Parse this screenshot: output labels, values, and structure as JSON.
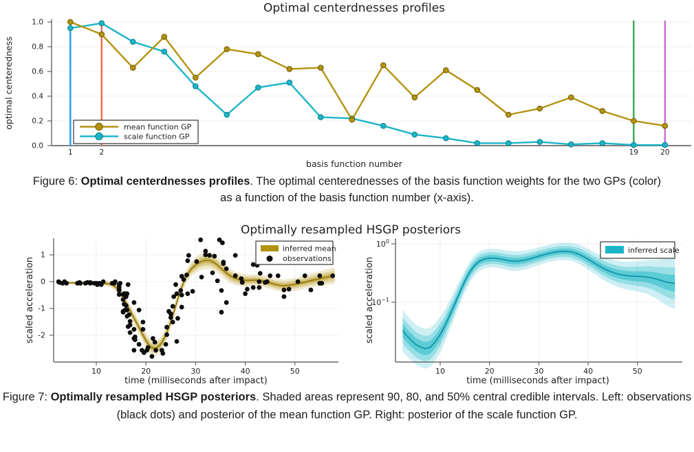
{
  "page": {
    "background": "#ffffff"
  },
  "colors": {
    "gold": "#B3920E",
    "gold_line": "#93760A",
    "teal": "#1BB5C7",
    "teal_line": "#0C93A5",
    "blue_vline": "#1E9DF2",
    "orange_vline": "#EE6A4C",
    "green_vline": "#3BA44F",
    "purple_vline": "#CB68D7",
    "observation_dot": "#0D0D0D",
    "spine": "#4a4a4a",
    "axis_bottom": "#7d7d7d",
    "grid": "#f0eeee",
    "legend_border": "#333333"
  },
  "figure6": {
    "caption": {
      "prefix": "Figure 6: ",
      "bold": "Optimal centerdnesses profiles",
      "rest": ". The optimal centerednesses of the basis function weights for the two GPs (color) as a function of the basis function number (x-axis)."
    }
  },
  "figure7": {
    "caption": {
      "prefix": "Figure 7: ",
      "bold": "Optimally resampled HSGP posteriors",
      "rest": ". Shaded areas represent 90, 80, and 50% central credible intervals. Left: observations (black dots) and posterior of the mean function GP. Right: posterior of the scale function GP."
    }
  },
  "chart_data": [
    {
      "id": "centeredness-profiles",
      "type": "line",
      "title": "Optimal centerdnesses profiles",
      "xlabel": "basis function number",
      "ylabel": "optimal centeredness",
      "x": [
        1,
        2,
        3,
        4,
        5,
        6,
        7,
        8,
        9,
        10,
        11,
        12,
        13,
        14,
        15,
        16,
        17,
        18,
        19,
        20
      ],
      "series": [
        {
          "name": "mean function GP",
          "color": "#B3920E",
          "marker_stroke": "#6F5A06",
          "values": [
            1.0,
            0.9,
            0.63,
            0.88,
            0.55,
            0.78,
            0.74,
            0.62,
            0.63,
            0.21,
            0.65,
            0.39,
            0.61,
            0.45,
            0.25,
            0.3,
            0.39,
            0.28,
            0.2,
            0.16
          ]
        },
        {
          "name": "scale function GP",
          "color": "#1BB5C7",
          "marker_stroke": "#0B7D8C",
          "values": [
            0.95,
            0.99,
            0.84,
            0.76,
            0.48,
            0.25,
            0.47,
            0.51,
            0.23,
            0.22,
            0.16,
            0.09,
            0.06,
            0.02,
            0.02,
            0.03,
            0.01,
            0.02,
            0.005,
            0.005
          ]
        }
      ],
      "vlines": [
        {
          "x": 1,
          "color": "#1E9DF2"
        },
        {
          "x": 2,
          "color": "#EE6A4C"
        },
        {
          "x": 19,
          "color": "#3BA44F"
        },
        {
          "x": 20,
          "color": "#CB68D7"
        }
      ],
      "xticks": [
        1,
        2,
        19,
        20
      ],
      "yticks": [
        0.0,
        0.2,
        0.4,
        0.6,
        0.8,
        1.0
      ],
      "ylim": [
        0.0,
        1.02
      ],
      "grid": true,
      "legend_position": "bottom-left"
    },
    {
      "id": "mean-function-posterior",
      "type": "scatter+band",
      "title": "Optimally resampled HSGP posteriors",
      "xlabel": "time (milliseconds after impact)",
      "ylabel": "scaled acceleration",
      "xticks": [
        10,
        20,
        30,
        40,
        50
      ],
      "yticks": [
        1,
        0,
        -1,
        -2
      ],
      "xlim": [
        1.4,
        58.8
      ],
      "ylim": [
        -3.0,
        1.62
      ],
      "band_levels": [
        90,
        80,
        50
      ],
      "band_fractions": [
        1,
        0.62,
        0.32
      ],
      "legend": [
        {
          "label": "inferred mean",
          "swatch": "band",
          "color": "#B3920E"
        },
        {
          "label": "observations",
          "swatch": "dot",
          "color": "#0D0D0D"
        }
      ],
      "mean_x": [
        2,
        4,
        6,
        8,
        10,
        12,
        13,
        14,
        15,
        16,
        17,
        18,
        19,
        20,
        21,
        22,
        23,
        24,
        25,
        26,
        27,
        28,
        29,
        30,
        31,
        32,
        33,
        34,
        35,
        36,
        37,
        38,
        39,
        40,
        41,
        42,
        43,
        44,
        45,
        46,
        47,
        48,
        49,
        50,
        51,
        52,
        53,
        54,
        55,
        56,
        57,
        58
      ],
      "mean_y": [
        -0.04,
        -0.04,
        -0.05,
        -0.05,
        -0.06,
        -0.07,
        -0.1,
        -0.22,
        -0.45,
        -0.8,
        -1.15,
        -1.5,
        -1.85,
        -2.2,
        -2.45,
        -2.5,
        -2.33,
        -2.0,
        -1.5,
        -0.9,
        -0.3,
        0.15,
        0.45,
        0.62,
        0.74,
        0.8,
        0.78,
        0.68,
        0.52,
        0.35,
        0.21,
        0.12,
        0.07,
        0.05,
        0.05,
        0.06,
        0.04,
        0.0,
        -0.05,
        -0.1,
        -0.14,
        -0.15,
        -0.13,
        -0.1,
        -0.06,
        -0.02,
        0.03,
        0.07,
        0.11,
        0.15,
        0.19,
        0.22
      ],
      "halfwidth90": [
        0.06,
        0.06,
        0.06,
        0.07,
        0.08,
        0.1,
        0.12,
        0.15,
        0.18,
        0.21,
        0.23,
        0.25,
        0.26,
        0.27,
        0.28,
        0.28,
        0.27,
        0.26,
        0.25,
        0.24,
        0.23,
        0.24,
        0.26,
        0.29,
        0.31,
        0.33,
        0.32,
        0.3,
        0.28,
        0.27,
        0.26,
        0.25,
        0.24,
        0.23,
        0.22,
        0.22,
        0.22,
        0.22,
        0.22,
        0.22,
        0.23,
        0.23,
        0.24,
        0.24,
        0.25,
        0.25,
        0.26,
        0.27,
        0.28,
        0.29,
        0.3,
        0.31
      ],
      "observations": [
        [
          2.4,
          0
        ],
        [
          2.6,
          -0.03
        ],
        [
          3.2,
          -0.06
        ],
        [
          3.6,
          0
        ],
        [
          4,
          -0.06
        ],
        [
          6.2,
          -0.06
        ],
        [
          6.6,
          -0.03
        ],
        [
          6.8,
          -0.06
        ],
        [
          7.8,
          -0.06
        ],
        [
          8.2,
          -0.03
        ],
        [
          8.8,
          -0.06
        ],
        [
          8.8,
          -0.03
        ],
        [
          9.6,
          -0.06
        ],
        [
          10,
          -0.06
        ],
        [
          10.2,
          -0.11
        ],
        [
          10.6,
          -0.06
        ],
        [
          11,
          -0.11
        ],
        [
          11.4,
          0
        ],
        [
          13.2,
          -0.06
        ],
        [
          13.6,
          -0.06
        ],
        [
          13.8,
          0
        ],
        [
          14.6,
          -0.28
        ],
        [
          14.6,
          -0.11
        ],
        [
          14.6,
          -0.11
        ],
        [
          14.6,
          -0.19
        ],
        [
          14.6,
          -0.33
        ],
        [
          14.6,
          -0.48
        ],
        [
          14.8,
          -0.06
        ],
        [
          15.4,
          -0.48
        ],
        [
          15.4,
          -0.67
        ],
        [
          15.4,
          -1.11
        ],
        [
          15.4,
          -1.14
        ],
        [
          15.6,
          -0.84
        ],
        [
          15.6,
          -0.45
        ],
        [
          15.8,
          -0.45
        ],
        [
          15.8,
          -1.06
        ],
        [
          16,
          -0.89
        ],
        [
          16,
          -0.56
        ],
        [
          16.2,
          -0.45
        ],
        [
          16.2,
          -1.06
        ],
        [
          16.2,
          -1.29
        ],
        [
          16.4,
          -0.11
        ],
        [
          16.4,
          -1.68
        ],
        [
          16.6,
          -1.23
        ],
        [
          16.8,
          -1.48
        ],
        [
          16.8,
          -1.9
        ],
        [
          16.8,
          -1.62
        ],
        [
          17.6,
          -0.78
        ],
        [
          17.6,
          -1.78
        ],
        [
          17.6,
          -2.56
        ],
        [
          17.6,
          -2.12
        ],
        [
          17.8,
          -2.06
        ],
        [
          17.8,
          -2.17
        ],
        [
          18.6,
          -2.34
        ],
        [
          18.6,
          -1.06
        ],
        [
          19.2,
          -2.56
        ],
        [
          19.4,
          -1.78
        ],
        [
          19.4,
          -1.51
        ],
        [
          19.6,
          -2.65
        ],
        [
          20.2,
          -2.56
        ],
        [
          20.4,
          -2.46
        ],
        [
          21.2,
          -2.79
        ],
        [
          21.4,
          -2.12
        ],
        [
          21.8,
          -2.26
        ],
        [
          22,
          -2.56
        ],
        [
          23.2,
          -2.56
        ],
        [
          23.4,
          -2.68
        ],
        [
          24,
          -2.34
        ],
        [
          24.2,
          -1.98
        ],
        [
          24.2,
          -1.7
        ],
        [
          24.6,
          -1.11
        ],
        [
          25,
          -1.34
        ],
        [
          25,
          -1.2
        ],
        [
          25.4,
          -1.51
        ],
        [
          25.4,
          -0.92
        ],
        [
          25.6,
          -0.56
        ],
        [
          26,
          -0.11
        ],
        [
          26.2,
          -2.23
        ],
        [
          26.2,
          -0.45
        ],
        [
          26.4,
          -1.37
        ],
        [
          27,
          -0.33
        ],
        [
          27.2,
          -0.95
        ],
        [
          27.2,
          -0.5
        ],
        [
          27.2,
          0.2
        ],
        [
          27.6,
          0.08
        ],
        [
          28.2,
          0.25
        ],
        [
          28.4,
          -0.45
        ],
        [
          28.4,
          0.78
        ],
        [
          28.6,
          0.98
        ],
        [
          29.4,
          -0.36
        ],
        [
          30.2,
          0.75
        ],
        [
          31,
          1.56
        ],
        [
          31.2,
          0.17
        ],
        [
          32,
          1.14
        ],
        [
          32,
          1
        ],
        [
          32.8,
          0.98
        ],
        [
          33.4,
          0.33
        ],
        [
          33.8,
          0.95
        ],
        [
          34.4,
          0.03
        ],
        [
          34.8,
          1.56
        ],
        [
          35.2,
          -0.33
        ],
        [
          35.2,
          -1.14
        ],
        [
          35.4,
          1.45
        ],
        [
          35.6,
          0.73
        ],
        [
          35.6,
          0.67
        ],
        [
          36.2,
          -0.78
        ],
        [
          36.2,
          0.48
        ],
        [
          38,
          0.98
        ],
        [
          38,
          0.22
        ],
        [
          39.2,
          0.11
        ],
        [
          39.4,
          -0.03
        ],
        [
          40,
          -0.45
        ],
        [
          40.4,
          -0.28
        ],
        [
          41.6,
          0.64
        ],
        [
          41.6,
          -0.22
        ],
        [
          42.4,
          0.61
        ],
        [
          42.8,
          0
        ],
        [
          42.8,
          -0.22
        ],
        [
          43,
          0.31
        ],
        [
          44,
          -0.03
        ],
        [
          44.4,
          0
        ],
        [
          45,
          0.22
        ],
        [
          46.6,
          0.22
        ],
        [
          47.8,
          -0.56
        ],
        [
          47.8,
          -0.31
        ],
        [
          48.8,
          -0.28
        ],
        [
          50.6,
          0
        ],
        [
          52,
          0.22
        ],
        [
          53.2,
          -0.31
        ],
        [
          55,
          -0.06
        ],
        [
          55,
          0.22
        ],
        [
          55.4,
          -0.06
        ],
        [
          57.6,
          0.22
        ]
      ]
    },
    {
      "id": "scale-function-posterior",
      "type": "band-log",
      "title": "",
      "xlabel": "time (milliseconds after impact)",
      "ylabel": "scaled acceleration",
      "xticks": [
        10,
        20,
        30,
        40,
        50
      ],
      "ytick_exponents": [
        0,
        -1
      ],
      "ytick_base": "10",
      "xlim": [
        0.9,
        58.8
      ],
      "band_levels": [
        90,
        80,
        50
      ],
      "band_fractions": [
        1,
        0.63,
        0.33
      ],
      "legend": [
        {
          "label": "inferred scale",
          "swatch": "band",
          "color": "#1BB5C7"
        }
      ],
      "median_x": [
        2.4,
        3,
        4,
        5,
        6,
        7,
        8,
        9,
        10,
        11,
        12,
        13,
        14,
        15,
        16,
        17,
        18,
        19,
        20,
        21,
        22,
        23,
        24,
        25,
        26,
        27,
        28,
        29,
        30,
        31,
        32,
        33,
        34,
        35,
        36,
        37,
        38,
        39,
        40,
        41,
        42,
        43,
        44,
        45,
        46,
        47,
        48,
        49,
        50,
        51,
        52,
        53,
        54,
        55,
        56,
        57.6
      ],
      "median_y": [
        0.033,
        0.028,
        0.023,
        0.019,
        0.017,
        0.016,
        0.017,
        0.021,
        0.028,
        0.04,
        0.062,
        0.095,
        0.15,
        0.23,
        0.33,
        0.43,
        0.51,
        0.55,
        0.57,
        0.57,
        0.555,
        0.535,
        0.515,
        0.505,
        0.51,
        0.525,
        0.55,
        0.58,
        0.615,
        0.65,
        0.685,
        0.715,
        0.735,
        0.745,
        0.74,
        0.715,
        0.67,
        0.61,
        0.545,
        0.485,
        0.43,
        0.385,
        0.35,
        0.325,
        0.305,
        0.292,
        0.285,
        0.28,
        0.278,
        0.275,
        0.27,
        0.26,
        0.247,
        0.233,
        0.22,
        0.21
      ],
      "spread90": [
        2.3,
        2.25,
        2.2,
        2.2,
        2.2,
        2.2,
        2.15,
        2.1,
        2.0,
        1.9,
        1.8,
        1.7,
        1.62,
        1.56,
        1.52,
        1.49,
        1.47,
        1.45,
        1.44,
        1.44,
        1.45,
        1.46,
        1.47,
        1.47,
        1.46,
        1.45,
        1.44,
        1.43,
        1.42,
        1.41,
        1.4,
        1.4,
        1.4,
        1.41,
        1.42,
        1.44,
        1.46,
        1.48,
        1.5,
        1.52,
        1.55,
        1.58,
        1.61,
        1.64,
        1.67,
        1.7,
        1.74,
        1.78,
        1.82,
        1.88,
        1.95,
        2.05,
        2.18,
        2.35,
        2.55,
        2.75
      ]
    }
  ]
}
